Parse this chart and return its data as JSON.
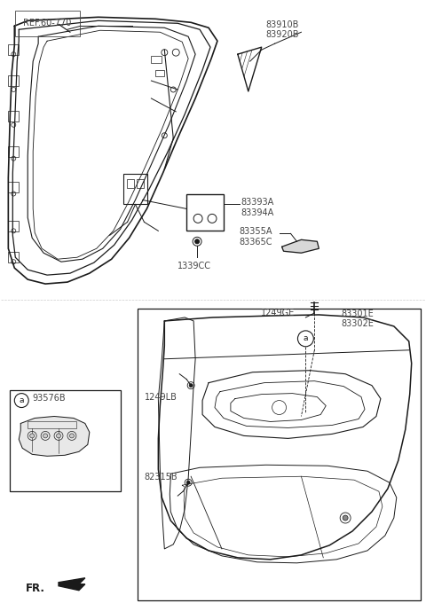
{
  "bg_color": "#ffffff",
  "line_color": "#1a1a1a",
  "label_color": "#444444",
  "figsize": [
    4.8,
    6.89
  ],
  "dpi": 100,
  "parts": {
    "ref_label": "REF.60-770",
    "part_83910B": "83910B",
    "part_83920B": "83920B",
    "part_83393A": "83393A",
    "part_83394A": "83394A",
    "part_1339CC": "1339CC",
    "part_83355A": "83355A",
    "part_83365C": "83365C",
    "part_83301E": "83301E",
    "part_83302E": "83302E",
    "part_1249GE": "1249GE",
    "part_1249LB": "1249LB",
    "part_82315B": "82315B",
    "part_93576B": "93576B",
    "fr_label": "FR."
  }
}
